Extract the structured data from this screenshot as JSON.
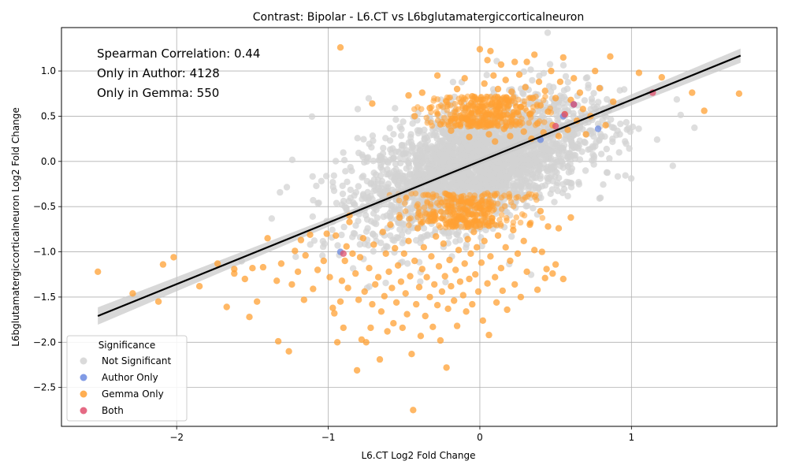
{
  "chart_data": {
    "type": "scatter",
    "title": "Contrast: Bipolar - L6.CT vs L6bglutamatergiccorticalneuron",
    "xlabel": "L6.CT Log2 Fold Change",
    "ylabel": "L6bglutamatergiccorticalneuron Log2 Fold Change",
    "xlim": [
      -2.76,
      1.96
    ],
    "ylim": [
      -2.93,
      1.48
    ],
    "x_ticks": [
      -2,
      -1,
      0,
      1
    ],
    "y_ticks": [
      -2.5,
      -2.0,
      -1.5,
      -1.0,
      -0.5,
      0.0,
      0.5,
      1.0
    ],
    "grid": true,
    "annotations": [
      "Spearman Correlation: 0.44",
      "Only in Author: 4128",
      "Only in Gemma: 550"
    ],
    "legend": {
      "title": "Significance",
      "placement": "lower-left",
      "entries": [
        {
          "label": "Not Significant",
          "color": "#d3d3d3"
        },
        {
          "label": "Author Only",
          "color": "#6b8ae0"
        },
        {
          "label": "Gemma Only",
          "color": "#ffa033"
        },
        {
          "label": "Both",
          "color": "#e0506e"
        }
      ]
    },
    "regression": {
      "x": [
        -2.52,
        1.72
      ],
      "y": [
        -1.71,
        1.17
      ],
      "color": "#000000"
    },
    "series": [
      {
        "name": "Gemma Only",
        "color": "#ffa033",
        "points": [
          [
            -2.52,
            -1.22
          ],
          [
            -2.29,
            -1.46
          ],
          [
            -2.12,
            -1.55
          ],
          [
            -2.09,
            -1.14
          ],
          [
            -2.02,
            -1.06
          ],
          [
            -1.85,
            -1.38
          ],
          [
            -1.73,
            -1.13
          ],
          [
            -1.67,
            -1.61
          ],
          [
            -1.62,
            -1.19
          ],
          [
            -1.62,
            -1.24
          ],
          [
            -1.55,
            -1.3
          ],
          [
            -1.52,
            -1.72
          ],
          [
            -1.5,
            -1.18
          ],
          [
            -1.47,
            -1.55
          ],
          [
            -1.43,
            -1.17
          ],
          [
            -1.4,
            -0.85
          ],
          [
            -1.34,
            -1.32
          ],
          [
            -1.33,
            -1.99
          ],
          [
            -1.31,
            -1.13
          ],
          [
            -1.26,
            -2.1
          ],
          [
            -1.24,
            -1.36
          ],
          [
            -1.22,
            -0.99
          ],
          [
            -1.2,
            -1.22
          ],
          [
            -1.18,
            -0.87
          ],
          [
            -1.16,
            -1.53
          ],
          [
            -1.15,
            -1.04
          ],
          [
            -1.12,
            -0.81
          ],
          [
            -1.1,
            -1.41
          ],
          [
            -1.07,
            -1.2
          ],
          [
            -1.03,
            -1.1
          ],
          [
            -1.01,
            -0.8
          ],
          [
            -0.99,
            -1.28
          ],
          [
            -0.97,
            -1.62
          ],
          [
            -0.96,
            -1.68
          ],
          [
            -0.95,
            -0.82
          ],
          [
            -0.94,
            -2.0
          ],
          [
            -0.92,
            -1.55
          ],
          [
            -0.91,
            -1.32
          ],
          [
            -0.9,
            -1.84
          ],
          [
            -0.89,
            -1.1
          ],
          [
            -0.88,
            -0.94
          ],
          [
            -0.87,
            -1.4
          ],
          [
            -0.86,
            -0.67
          ],
          [
            -0.86,
            -0.6
          ],
          [
            -0.84,
            -1.02
          ],
          [
            -0.82,
            -1.24
          ],
          [
            -0.81,
            -2.31
          ],
          [
            -0.8,
            -1.53
          ],
          [
            -0.79,
            -1.06
          ],
          [
            -0.78,
            -1.97
          ],
          [
            -0.77,
            -0.85
          ],
          [
            -0.76,
            -1.44
          ],
          [
            -0.75,
            -2.0
          ],
          [
            -0.73,
            -1.18
          ],
          [
            -0.72,
            -1.84
          ],
          [
            -0.71,
            -1.58
          ],
          [
            -0.7,
            -0.92
          ],
          [
            -0.69,
            -1.36
          ],
          [
            -0.67,
            -1.28
          ],
          [
            -0.66,
            -2.19
          ],
          [
            -0.65,
            -1.66
          ],
          [
            -0.64,
            -0.78
          ],
          [
            -0.63,
            -1.49
          ],
          [
            -0.62,
            -1.02
          ],
          [
            -0.61,
            -1.88
          ],
          [
            -0.6,
            -1.22
          ],
          [
            -0.59,
            -0.7
          ],
          [
            -0.58,
            -1.4
          ],
          [
            -0.57,
            -1.79
          ],
          [
            -0.56,
            -0.96
          ],
          [
            -0.55,
            -1.56
          ],
          [
            -0.54,
            -1.15
          ],
          [
            -0.53,
            -0.62
          ],
          [
            -0.52,
            -1.33
          ],
          [
            -0.51,
            -1.84
          ],
          [
            -0.5,
            -1.02
          ],
          [
            -0.49,
            -1.46
          ],
          [
            -0.48,
            -1.69
          ],
          [
            -0.47,
            -0.88
          ],
          [
            -0.46,
            -1.27
          ],
          [
            -0.45,
            -2.13
          ],
          [
            -0.44,
            -2.75
          ],
          [
            -0.43,
            -1.1
          ],
          [
            -0.42,
            -1.58
          ],
          [
            -0.41,
            -0.74
          ],
          [
            -0.4,
            -1.39
          ],
          [
            -0.39,
            -1.93
          ],
          [
            -0.38,
            -1.19
          ],
          [
            -0.37,
            -0.95
          ],
          [
            -0.36,
            -1.71
          ],
          [
            -0.35,
            -1.28
          ],
          [
            -0.34,
            -0.66
          ],
          [
            -0.33,
            -1.5
          ],
          [
            -0.32,
            -1.05
          ],
          [
            -0.31,
            -1.83
          ],
          [
            -0.3,
            -1.36
          ],
          [
            -0.29,
            -0.83
          ],
          [
            -0.28,
            -1.59
          ],
          [
            -0.27,
            -1.16
          ],
          [
            -0.26,
            -1.98
          ],
          [
            -0.25,
            -1.44
          ],
          [
            -0.24,
            -0.91
          ],
          [
            -0.23,
            -1.27
          ],
          [
            -0.22,
            -2.28
          ],
          [
            -0.21,
            -1.63
          ],
          [
            -0.2,
            -1.09
          ],
          [
            -0.19,
            -1.38
          ],
          [
            -0.18,
            -0.72
          ],
          [
            -0.17,
            -1.54
          ],
          [
            -0.16,
            -1.2
          ],
          [
            -0.15,
            -1.82
          ],
          [
            -0.14,
            -0.98
          ],
          [
            -0.13,
            -1.33
          ],
          [
            -0.12,
            -0.64
          ],
          [
            -0.11,
            -1.48
          ],
          [
            -0.1,
            -1.13
          ],
          [
            -0.09,
            -1.66
          ],
          [
            -0.08,
            -0.86
          ],
          [
            -0.07,
            -1.3
          ],
          [
            -0.06,
            -1.02
          ],
          [
            -0.05,
            -1.58
          ],
          [
            -0.04,
            -0.78
          ],
          [
            -0.03,
            -1.25
          ],
          [
            -0.02,
            -0.95
          ],
          [
            -0.01,
            -1.44
          ],
          [
            0.0,
            -0.7
          ],
          [
            0.01,
            -1.12
          ],
          [
            0.02,
            -1.76
          ],
          [
            0.03,
            -0.88
          ],
          [
            0.05,
            -1.35
          ],
          [
            0.06,
            -1.92
          ],
          [
            0.07,
            -1.05
          ],
          [
            0.08,
            -0.63
          ],
          [
            0.1,
            -1.28
          ],
          [
            0.11,
            -1.56
          ],
          [
            0.12,
            -0.82
          ],
          [
            0.14,
            -1.18
          ],
          [
            0.15,
            -1.43
          ],
          [
            0.17,
            -0.95
          ],
          [
            0.18,
            -1.64
          ],
          [
            0.2,
            -1.1
          ],
          [
            0.22,
            -0.76
          ],
          [
            0.23,
            -1.36
          ],
          [
            0.25,
            -1.02
          ],
          [
            0.27,
            -1.5
          ],
          [
            0.29,
            -0.88
          ],
          [
            0.31,
            -1.22
          ],
          [
            0.33,
            -0.7
          ],
          [
            0.36,
            -0.98
          ],
          [
            0.38,
            -1.42
          ],
          [
            0.41,
            -1.0
          ],
          [
            0.43,
            -1.29
          ],
          [
            0.45,
            -0.72
          ],
          [
            0.48,
            -1.24
          ],
          [
            0.5,
            -1.14
          ],
          [
            0.52,
            -0.74
          ],
          [
            0.55,
            -1.3
          ],
          [
            0.6,
            -0.62
          ],
          [
            0.44,
            -1.19
          ],
          [
            0.4,
            -0.55
          ],
          [
            -0.92,
            1.26
          ],
          [
            -0.71,
            0.64
          ],
          [
            -0.47,
            0.73
          ],
          [
            -0.43,
            0.5
          ],
          [
            -0.38,
            0.76
          ],
          [
            -0.33,
            0.59
          ],
          [
            -0.28,
            0.95
          ],
          [
            -0.26,
            0.41
          ],
          [
            -0.22,
            0.66
          ],
          [
            -0.19,
            0.34
          ],
          [
            -0.15,
            0.8
          ],
          [
            -0.12,
            0.48
          ],
          [
            -0.1,
            0.92
          ],
          [
            -0.07,
            0.27
          ],
          [
            -0.05,
            0.72
          ],
          [
            -0.03,
            0.58
          ],
          [
            0.0,
            1.24
          ],
          [
            0.01,
            0.4
          ],
          [
            0.03,
            0.86
          ],
          [
            0.05,
            1.12
          ],
          [
            0.06,
            0.3
          ],
          [
            0.07,
            1.22
          ],
          [
            0.08,
            0.64
          ],
          [
            0.09,
            0.95
          ],
          [
            0.1,
            0.22
          ],
          [
            0.12,
            0.8
          ],
          [
            0.13,
            0.5
          ],
          [
            0.14,
            1.07
          ],
          [
            0.16,
            0.36
          ],
          [
            0.17,
            0.9
          ],
          [
            0.19,
            0.62
          ],
          [
            0.2,
            0.28
          ],
          [
            0.21,
            0.77
          ],
          [
            0.23,
            1.1
          ],
          [
            0.24,
            0.44
          ],
          [
            0.26,
            0.96
          ],
          [
            0.27,
            0.6
          ],
          [
            0.29,
            0.33
          ],
          [
            0.3,
            0.82
          ],
          [
            0.31,
            1.1
          ],
          [
            0.33,
            0.52
          ],
          [
            0.34,
            0.25
          ],
          [
            0.35,
            0.7
          ],
          [
            0.36,
            1.18
          ],
          [
            0.38,
            0.42
          ],
          [
            0.39,
            0.88
          ],
          [
            0.4,
            0.62
          ],
          [
            0.42,
            0.32
          ],
          [
            0.43,
            0.78
          ],
          [
            0.45,
            0.55
          ],
          [
            0.47,
            1.0
          ],
          [
            0.48,
            0.4
          ],
          [
            0.5,
            0.7
          ],
          [
            0.52,
            0.28
          ],
          [
            0.53,
            0.88
          ],
          [
            0.55,
            1.15
          ],
          [
            0.56,
            0.52
          ],
          [
            0.58,
            0.35
          ],
          [
            0.6,
            0.68
          ],
          [
            0.62,
            0.92
          ],
          [
            0.64,
            0.45
          ],
          [
            0.66,
            0.76
          ],
          [
            0.68,
            0.58
          ],
          [
            0.7,
            0.3
          ],
          [
            0.73,
            0.5
          ],
          [
            0.76,
            1.0
          ],
          [
            0.79,
            0.81
          ],
          [
            0.83,
            0.4
          ],
          [
            0.86,
            1.16
          ],
          [
            0.88,
            0.66
          ],
          [
            1.05,
            0.98
          ],
          [
            1.2,
            0.93
          ],
          [
            1.4,
            0.76
          ],
          [
            1.48,
            0.56
          ],
          [
            1.71,
            0.75
          ]
        ]
      },
      {
        "name": "Author Only",
        "color": "#6b8ae0",
        "points": [
          [
            0.4,
            0.24
          ],
          [
            0.62,
            0.63
          ],
          [
            0.78,
            0.36
          ],
          [
            -0.92,
            -1.0
          ],
          [
            0.55,
            0.5
          ]
        ]
      },
      {
        "name": "Both",
        "color": "#e0506e",
        "points": [
          [
            -0.9,
            -1.02
          ],
          [
            0.56,
            0.52
          ],
          [
            0.62,
            0.63
          ],
          [
            1.14,
            0.76
          ],
          [
            0.5,
            0.39
          ]
        ]
      }
    ]
  }
}
